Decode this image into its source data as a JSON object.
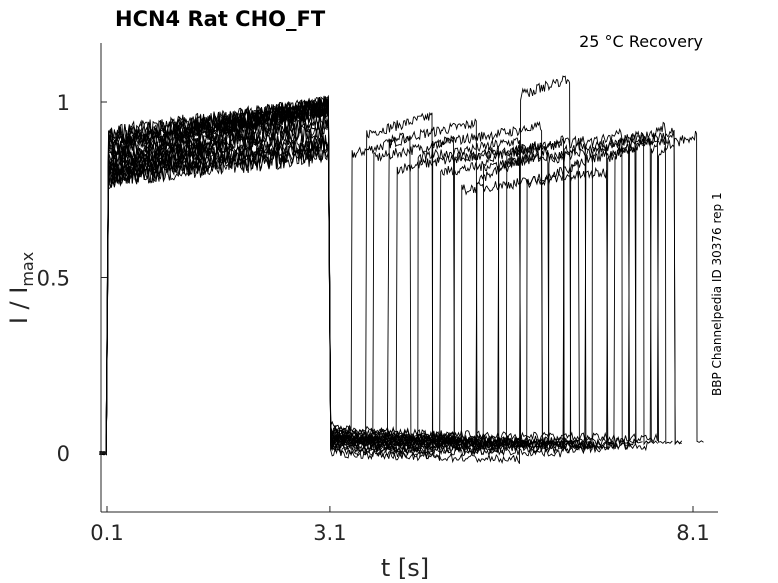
{
  "chart_data": {
    "type": "line",
    "title": "HCN4  Rat  CHO_FT",
    "annotation": "25 °C  Recovery",
    "side_label": "BBP Channelpedia ID 30376 rep 1",
    "xlabel": "t [s]",
    "ylabel_main": "I / I",
    "ylabel_sub": "max",
    "xlim": [
      0.0,
      8.25
    ],
    "ylim": [
      -0.18,
      1.17
    ],
    "xticks": [
      0.1,
      3.1,
      8.1
    ],
    "xtick_labels": [
      "0.1",
      "3.1",
      "8.1"
    ],
    "yticks": [
      0,
      0.5,
      1
    ],
    "ytick_labels": [
      "0",
      "0.5",
      "1"
    ],
    "grid": false,
    "prepulse": {
      "start": 0.1,
      "end": 3.1,
      "level_range": [
        0.78,
        0.99
      ]
    },
    "sweeps": [
      {
        "test_start": 3.4,
        "test_end": 4.21,
        "level": 0.88,
        "baseline": 0.06
      },
      {
        "test_start": 3.6,
        "test_end": 4.51,
        "level": 0.94,
        "baseline": 0.05
      },
      {
        "test_start": 3.7,
        "test_end": 4.81,
        "level": 0.87,
        "baseline": 0.04
      },
      {
        "test_start": 3.91,
        "test_end": 5.12,
        "level": 0.92,
        "baseline": 0.03
      },
      {
        "test_start": 4.02,
        "test_end": 5.42,
        "level": 0.84,
        "baseline": 0.02
      },
      {
        "test_start": 4.31,
        "test_end": 5.72,
        "level": 0.87,
        "baseline": 0.01
      },
      {
        "test_start": 4.51,
        "test_end": 6.02,
        "level": 0.91,
        "baseline": 0.0
      },
      {
        "test_start": 4.62,
        "test_end": 6.32,
        "level": 0.83,
        "baseline": -0.01
      },
      {
        "test_start": 4.81,
        "test_end": 6.62,
        "level": 0.87,
        "baseline": 0.05
      },
      {
        "test_start": 4.91,
        "test_end": 6.92,
        "level": 0.78,
        "baseline": 0.04
      },
      {
        "test_start": 5.12,
        "test_end": 5.72,
        "level": 0.81,
        "baseline": 0.03
      },
      {
        "test_start": 5.21,
        "test_end": 6.02,
        "level": 0.86,
        "baseline": 0.02
      },
      {
        "test_start": 5.42,
        "test_end": 6.11,
        "level": 0.84,
        "baseline": 0.0
      },
      {
        "test_start": 5.53,
        "test_end": 6.32,
        "level": 0.87,
        "baseline": 0.01
      },
      {
        "test_start": 5.72,
        "test_end": 6.41,
        "level": 1.05,
        "baseline": -0.02
      },
      {
        "test_start": 5.81,
        "test_end": 6.53,
        "level": 0.8,
        "baseline": 0.03
      },
      {
        "test_start": 6.11,
        "test_end": 6.92,
        "level": 0.86,
        "baseline": 0.02
      },
      {
        "test_start": 6.32,
        "test_end": 7.12,
        "level": 0.89,
        "baseline": 0.0
      },
      {
        "test_start": 6.41,
        "test_end": 7.22,
        "level": 0.85,
        "baseline": 0.03
      },
      {
        "test_start": 6.62,
        "test_end": 7.31,
        "level": 0.88,
        "baseline": 0.01
      },
      {
        "test_start": 6.71,
        "test_end": 7.42,
        "level": 0.89,
        "baseline": 0.02
      },
      {
        "test_start": 6.92,
        "test_end": 7.52,
        "level": 0.87,
        "baseline": 0.01
      },
      {
        "test_start": 7.02,
        "test_end": 7.62,
        "level": 0.88,
        "baseline": 0.02
      },
      {
        "test_start": 7.22,
        "test_end": 7.72,
        "level": 0.91,
        "baseline": 0.02
      },
      {
        "test_start": 7.31,
        "test_end": 7.85,
        "level": 0.9,
        "baseline": 0.03
      },
      {
        "test_start": 7.52,
        "test_end": 7.85,
        "level": 0.89,
        "baseline": 0.02
      },
      {
        "test_start": 7.62,
        "test_end": 8.15,
        "level": 0.89,
        "baseline": 0.04
      }
    ]
  }
}
